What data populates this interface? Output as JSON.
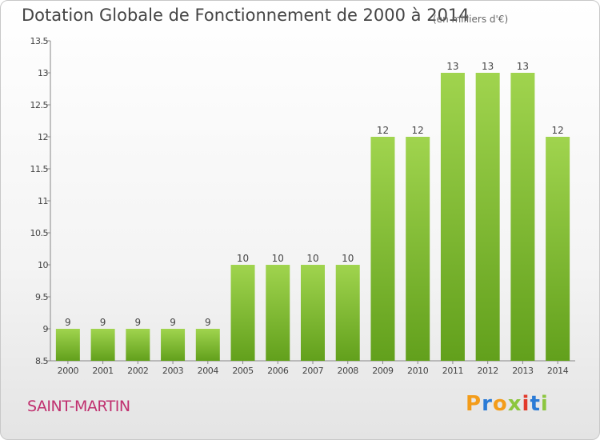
{
  "header": {
    "title": "Dotation Globale de Fonctionnement de 2000 à 2014",
    "unit": "(en milliers d'€)"
  },
  "footer": {
    "commune": "SAINT-MARTIN",
    "logo_text": "Proxiti",
    "logo_colors": [
      "#f39c1a",
      "#2b7bd6",
      "#f39c1a",
      "#8cc63f",
      "#e23a2b",
      "#2b7bd6",
      "#8cc63f"
    ]
  },
  "chart_data": {
    "type": "bar",
    "title": "Dotation Globale de Fonctionnement de 2000 à 2014",
    "subtitle": "(en milliers d'€)",
    "xlabel": "",
    "ylabel": "",
    "categories": [
      "2000",
      "2001",
      "2002",
      "2003",
      "2004",
      "2005",
      "2006",
      "2007",
      "2008",
      "2009",
      "2010",
      "2011",
      "2012",
      "2013",
      "2014"
    ],
    "values": [
      9,
      9,
      9,
      9,
      9,
      10,
      10,
      10,
      10,
      12,
      12,
      13,
      13,
      13,
      12
    ],
    "data_labels": [
      "9",
      "9",
      "9",
      "9",
      "9",
      "10",
      "10",
      "10",
      "10",
      "12",
      "12",
      "13",
      "13",
      "13",
      "12"
    ],
    "ylim": [
      8.5,
      13.5
    ],
    "yticks": [
      8.5,
      9,
      9.5,
      10,
      10.5,
      11,
      11.5,
      12,
      12.5,
      13,
      13.5
    ],
    "ytick_labels": [
      "8.5",
      "9",
      "9.5",
      "10",
      "10.5",
      "11",
      "11.5",
      "12",
      "12.5",
      "13",
      "13.5"
    ],
    "grid": false,
    "bar_color": "#7cbf2e"
  }
}
